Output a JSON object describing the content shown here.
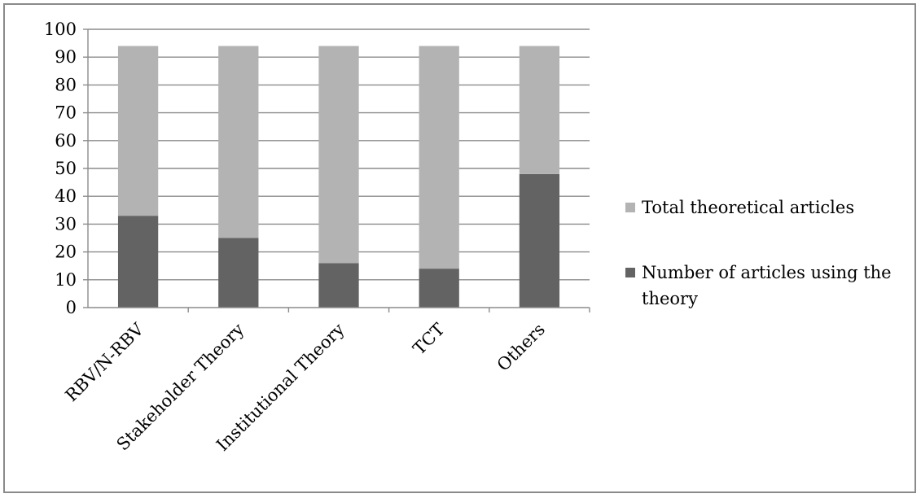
{
  "chart_data": {
    "type": "bar",
    "stacked": true,
    "categories": [
      "RBV/N-RBV",
      "Stakeholder Theory",
      "Institutional Theory",
      "TCT",
      "Others"
    ],
    "series": [
      {
        "name": "Number of articles using the theory",
        "values": [
          33,
          25,
          16,
          14,
          48
        ],
        "color": "#636363"
      },
      {
        "name": "Total theoretical articles",
        "values": [
          61,
          69,
          78,
          80,
          46
        ],
        "color": "#b3b3b3"
      }
    ],
    "ylim": [
      0,
      100
    ],
    "yticks": [
      "0",
      "10",
      "20",
      "30",
      "40",
      "50",
      "60",
      "70",
      "80",
      "90",
      "100"
    ],
    "grid": true,
    "legend_position": "right",
    "title": "",
    "xlabel": "",
    "ylabel": ""
  },
  "legend": {
    "items": [
      {
        "lines": [
          "Total theoretical articles"
        ],
        "color": "#b3b3b3"
      },
      {
        "lines": [
          "Number of articles using the",
          "theory"
        ],
        "color": "#636363"
      }
    ]
  }
}
